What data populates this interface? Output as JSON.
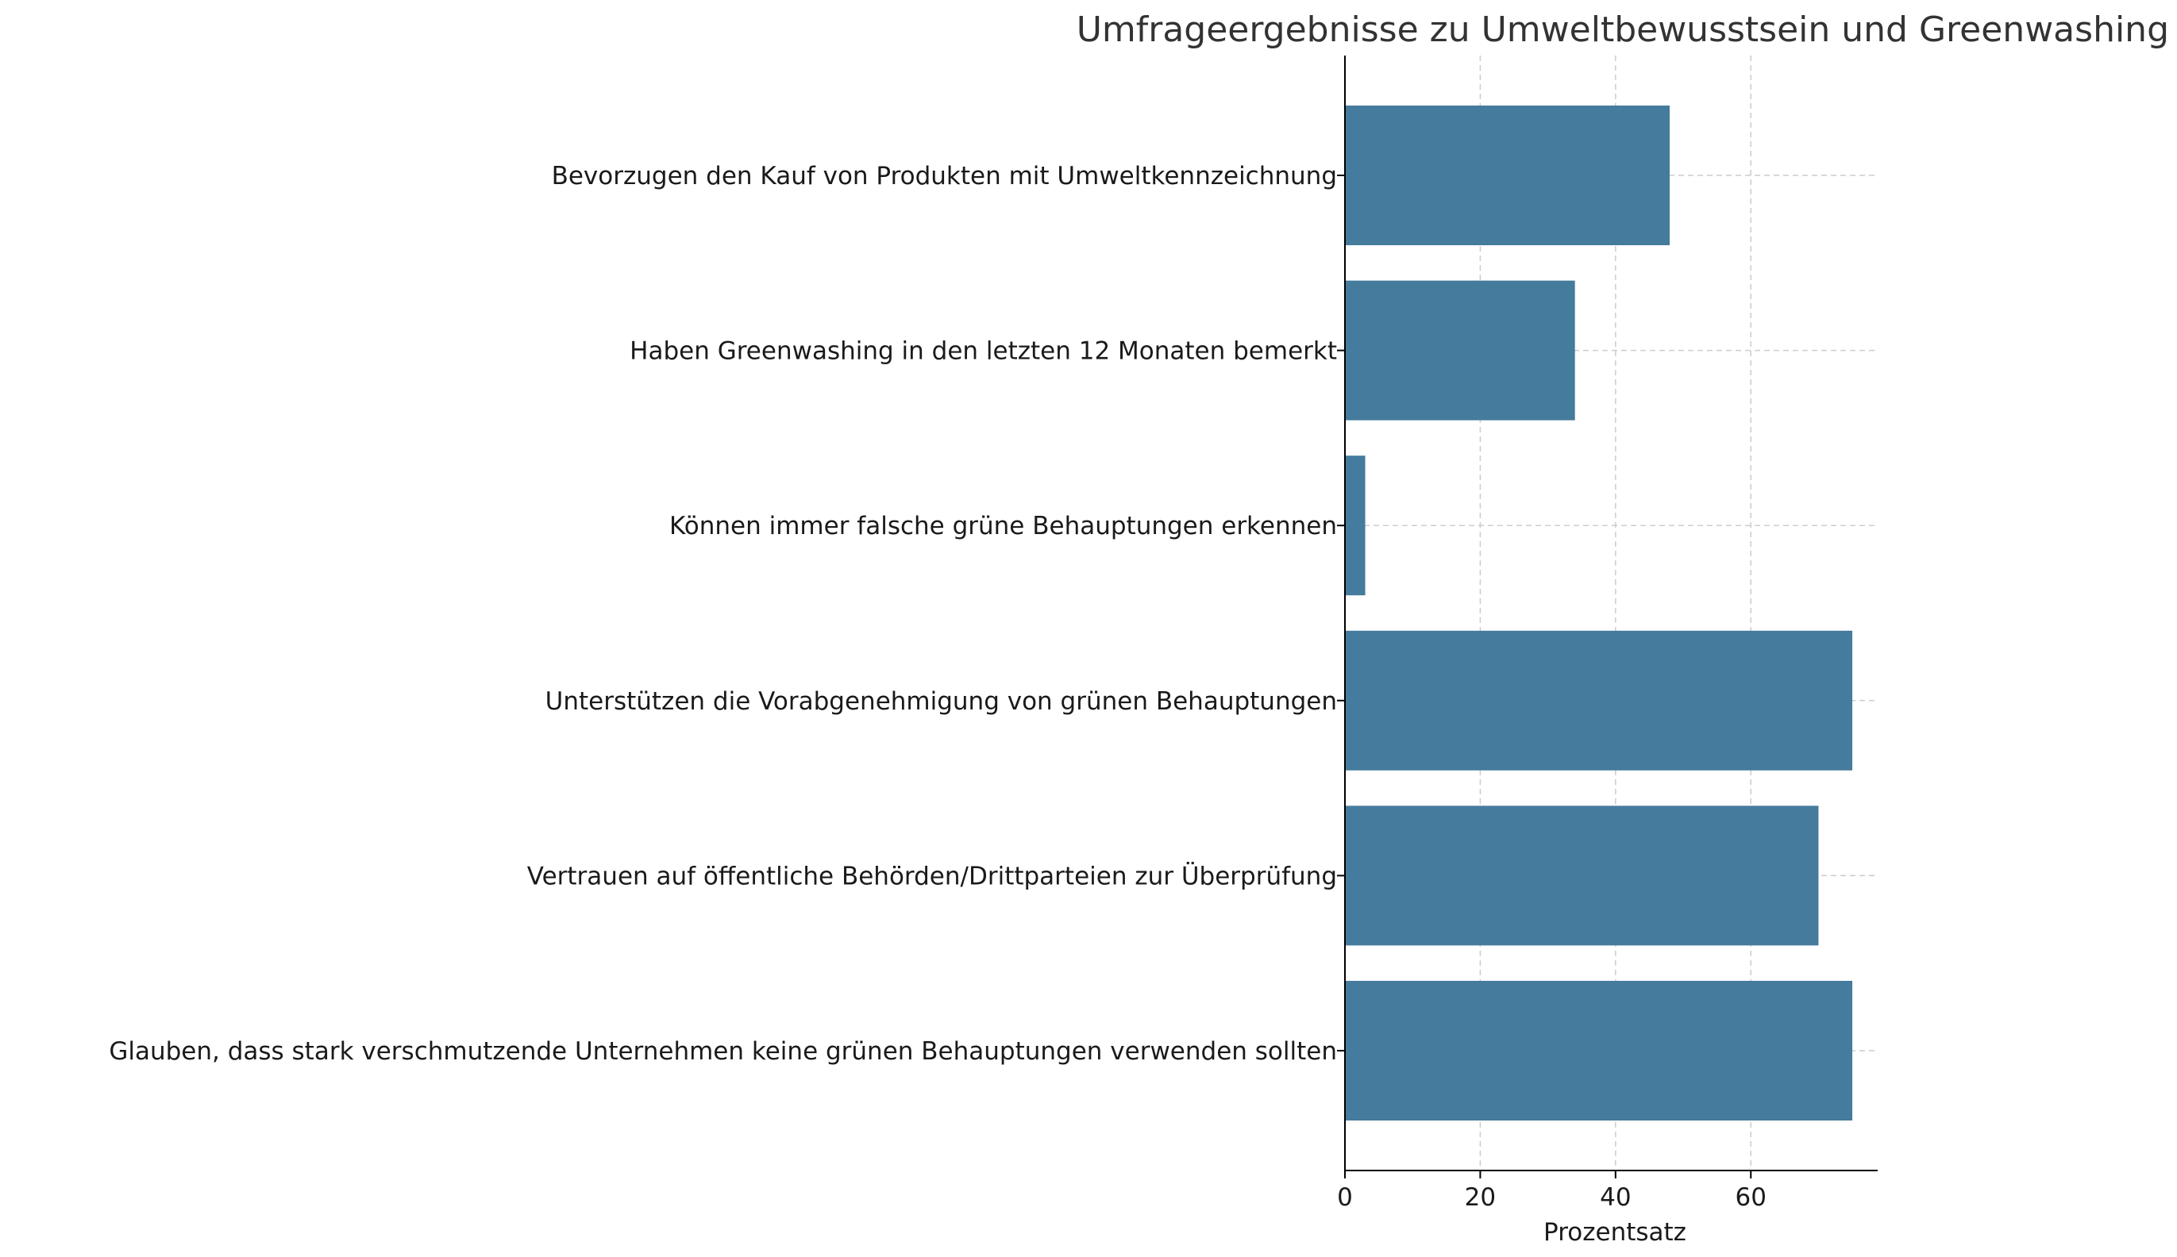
{
  "chart_data": {
    "type": "bar",
    "orientation": "horizontal",
    "title": "Umfrageergebnisse zu Umweltbewusstsein und Greenwashing",
    "xlabel": "Prozentsatz",
    "ylabel": "",
    "categories": [
      "Bevorzugen den Kauf von Produkten mit Umweltkennzeichnung",
      "Haben Greenwashing in den letzten 12 Monaten bemerkt",
      "Können immer falsche grüne Behauptungen erkennen",
      "Unterstützen die Vorabgenehmigung von grünen Behauptungen",
      "Vertrauen auf öffentliche Behörden/Drittparteien zur Überprüfung",
      "Glauben, dass stark verschmutzende Unternehmen keine grünen Behauptungen verwenden sollten"
    ],
    "values": [
      48,
      34,
      3,
      75,
      70,
      75
    ],
    "xlim": [
      0,
      78.75
    ],
    "xticks": [
      0,
      20,
      40,
      60
    ],
    "grid": true,
    "bar_color": "#457b9d",
    "grid_color": "#cccccc",
    "text_color": "#333333"
  }
}
